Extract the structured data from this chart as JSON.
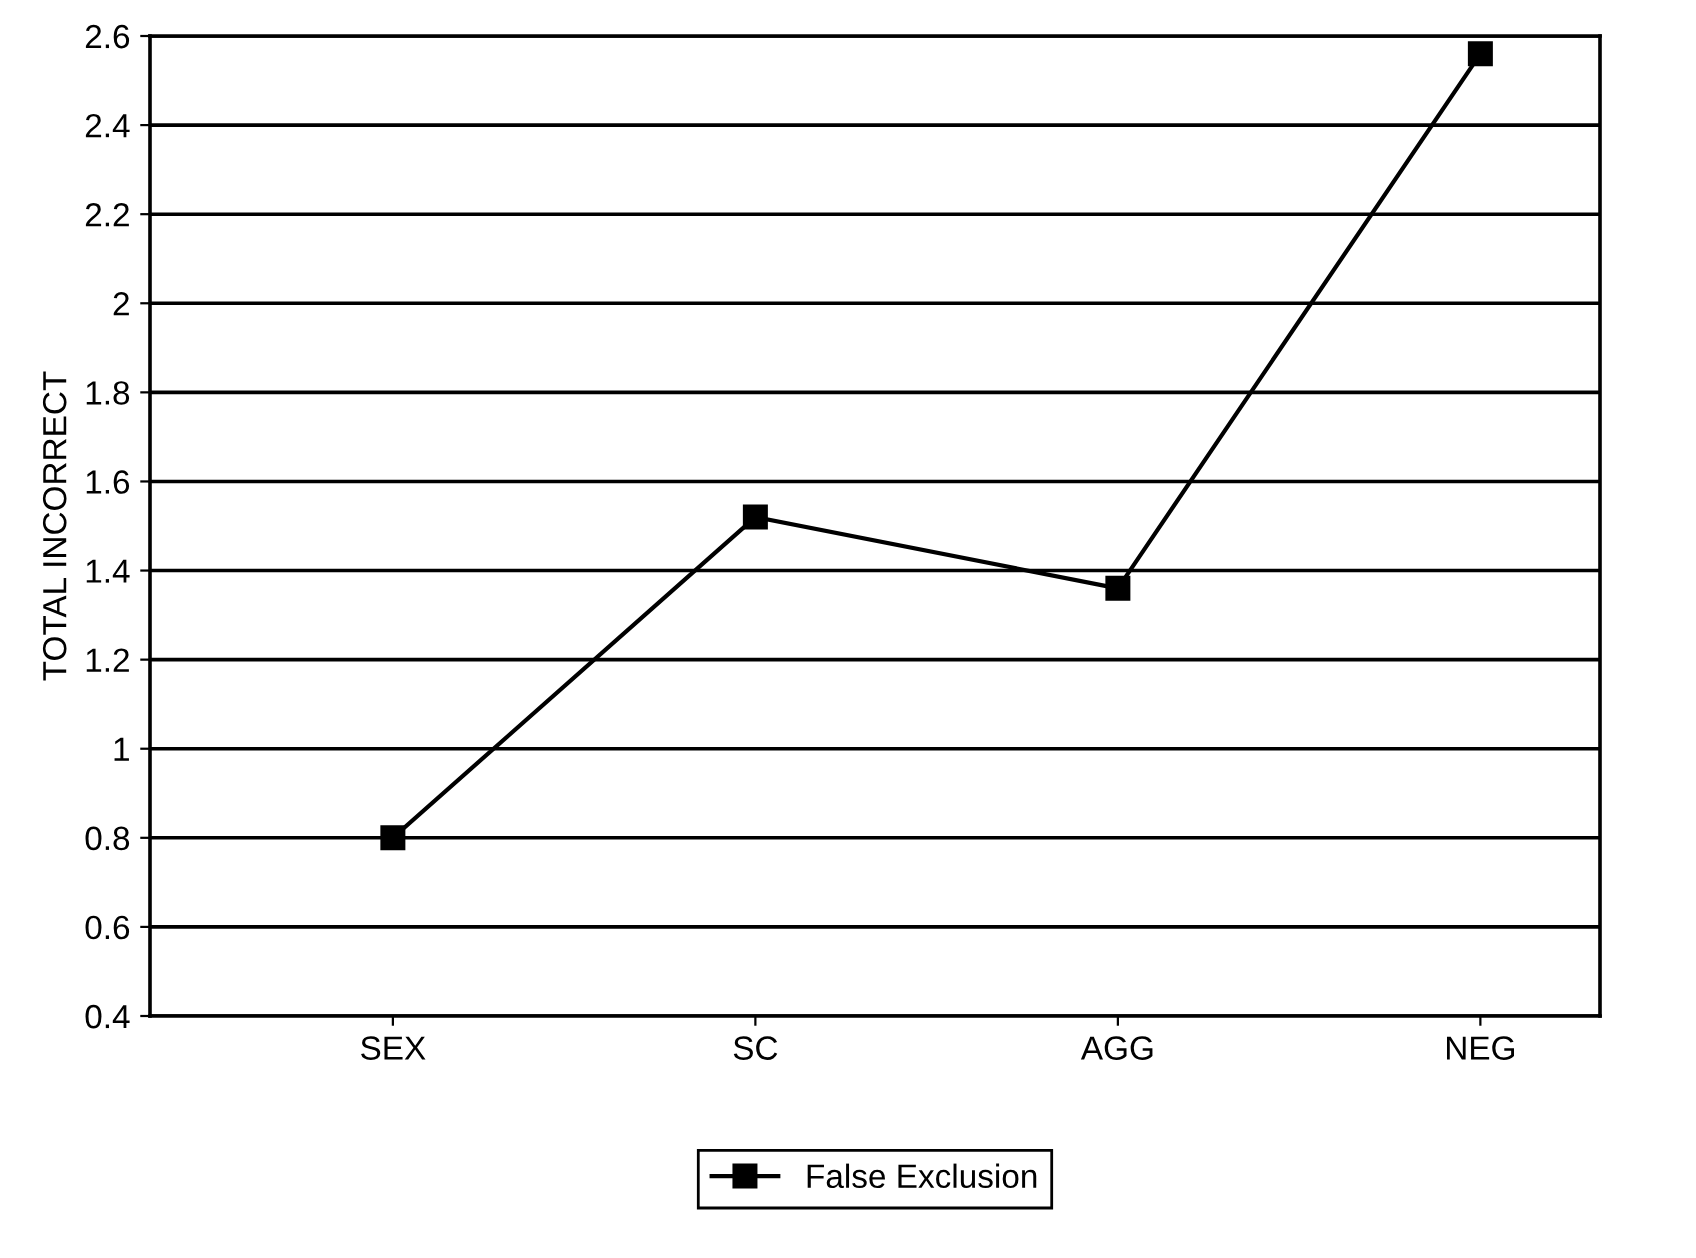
{
  "chart_data": {
    "type": "line",
    "ylabel": "TOTAL INCORRECT",
    "categories": [
      "SEX",
      "SC",
      "AGG",
      "NEG"
    ],
    "series": [
      {
        "name": "False Exclusion",
        "color": "#000000",
        "values": [
          0.8,
          1.52,
          1.36,
          2.56
        ]
      }
    ],
    "ylim": [
      0.4,
      2.6
    ],
    "yticks": [
      0.4,
      0.6,
      0.8,
      1,
      1.2,
      1.4,
      1.6,
      1.8,
      2,
      2.2,
      2.4,
      2.6
    ],
    "grid": "y",
    "legend": "bottom",
    "marker": "square",
    "line_style": "solid"
  }
}
